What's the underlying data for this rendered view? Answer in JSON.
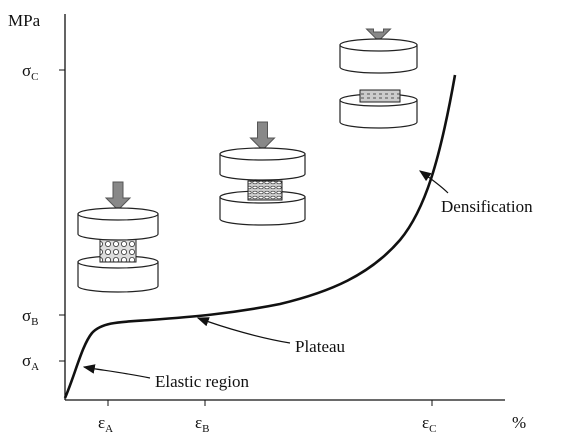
{
  "axis": {
    "y_unit": "MPa",
    "x_unit": "%"
  },
  "y_labels": [
    {
      "symbol": "σ",
      "subscript": "C"
    },
    {
      "symbol": "σ",
      "subscript": "B"
    },
    {
      "symbol": "σ",
      "subscript": "A"
    }
  ],
  "x_labels": [
    {
      "symbol": "ε",
      "subscript": "A"
    },
    {
      "symbol": "ε",
      "subscript": "B"
    },
    {
      "symbol": "ε",
      "subscript": "C"
    }
  ],
  "annotations": {
    "elastic": "Elastic region",
    "plateau": "Plateau",
    "densification": "Densification"
  }
}
